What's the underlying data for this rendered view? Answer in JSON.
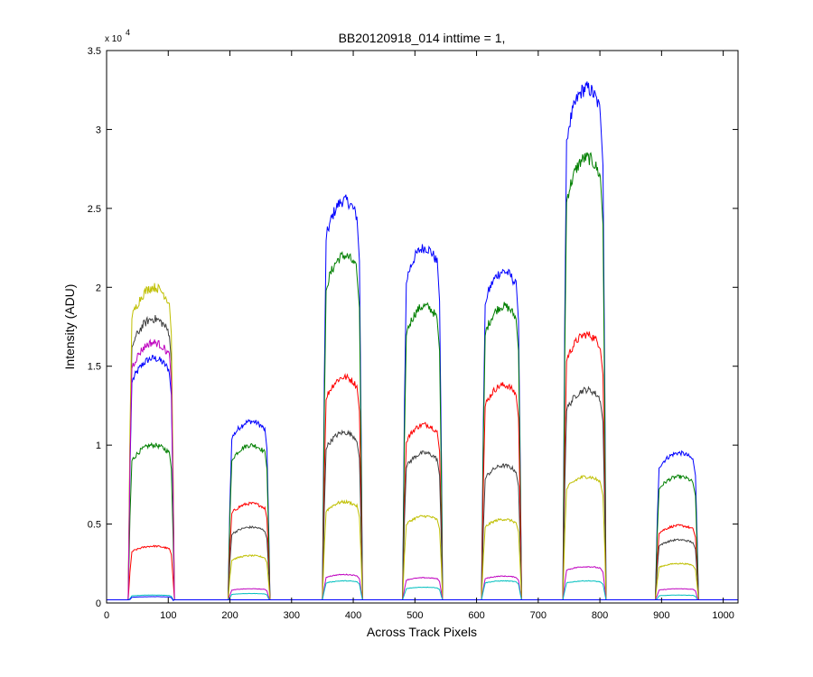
{
  "chart_data": {
    "type": "line",
    "title": "BB20120918_014 inttime = 1,",
    "xlabel": "Across Track Pixels",
    "ylabel": "Intensity (ADU)",
    "xlim": [
      0,
      1024
    ],
    "ylim": [
      0,
      35000
    ],
    "x_ticks": [
      0,
      100,
      200,
      300,
      400,
      500,
      600,
      700,
      800,
      900,
      1000
    ],
    "y_ticks": [
      0,
      5000,
      10000,
      15000,
      20000,
      25000,
      30000,
      35000
    ],
    "y_tick_labels": [
      "0",
      "0.5",
      "1",
      "1.5",
      "2",
      "2.5",
      "3",
      "3.5"
    ],
    "y_exponent": {
      "base": "x 10",
      "power": "4"
    },
    "grid": false,
    "legend": "none",
    "baseline": 200,
    "bands": [
      {
        "x0": 35,
        "x1": 110,
        "levels": {
          "yellow": 20000,
          "black": 18000,
          "magenta": 16500,
          "blue": 15500,
          "green": 10000,
          "red": 3600,
          "cyan": 500,
          "blue-low": 400
        }
      },
      {
        "x0": 197,
        "x1": 265,
        "levels": {
          "blue": 11500,
          "green": 10000,
          "red": 6300,
          "black": 4800,
          "yellow": 3000,
          "magenta": 900,
          "cyan": 600
        }
      },
      {
        "x0": 350,
        "x1": 415,
        "levels": {
          "blue": 25500,
          "green": 22000,
          "red": 14300,
          "black": 10800,
          "yellow": 6400,
          "magenta": 1800,
          "cyan": 1400
        }
      },
      {
        "x0": 480,
        "x1": 545,
        "levels": {
          "blue": 22500,
          "green": 18800,
          "red": 11300,
          "black": 9500,
          "yellow": 5500,
          "magenta": 1600,
          "cyan": 1000
        }
      },
      {
        "x0": 608,
        "x1": 673,
        "levels": {
          "blue": 21000,
          "green": 18800,
          "red": 13800,
          "black": 8700,
          "yellow": 5300,
          "magenta": 1700,
          "cyan": 1400
        }
      },
      {
        "x0": 740,
        "x1": 810,
        "levels": {
          "blue": 32600,
          "green": 28200,
          "red": 17000,
          "black": 13500,
          "yellow": 8000,
          "magenta": 2300,
          "cyan": 1400
        }
      },
      {
        "x0": 890,
        "x1": 960,
        "levels": {
          "blue": 9500,
          "green": 8000,
          "red": 4900,
          "black": 4000,
          "yellow": 2500,
          "magenta": 900,
          "cyan": 500
        }
      }
    ],
    "series_colors": {
      "blue": "#0000ff",
      "green": "#007f00",
      "red": "#ff0000",
      "black": "#404040",
      "yellow": "#bfbf00",
      "magenta": "#bf00bf",
      "cyan": "#00bfbf",
      "blue-low": "#0000ff"
    }
  }
}
